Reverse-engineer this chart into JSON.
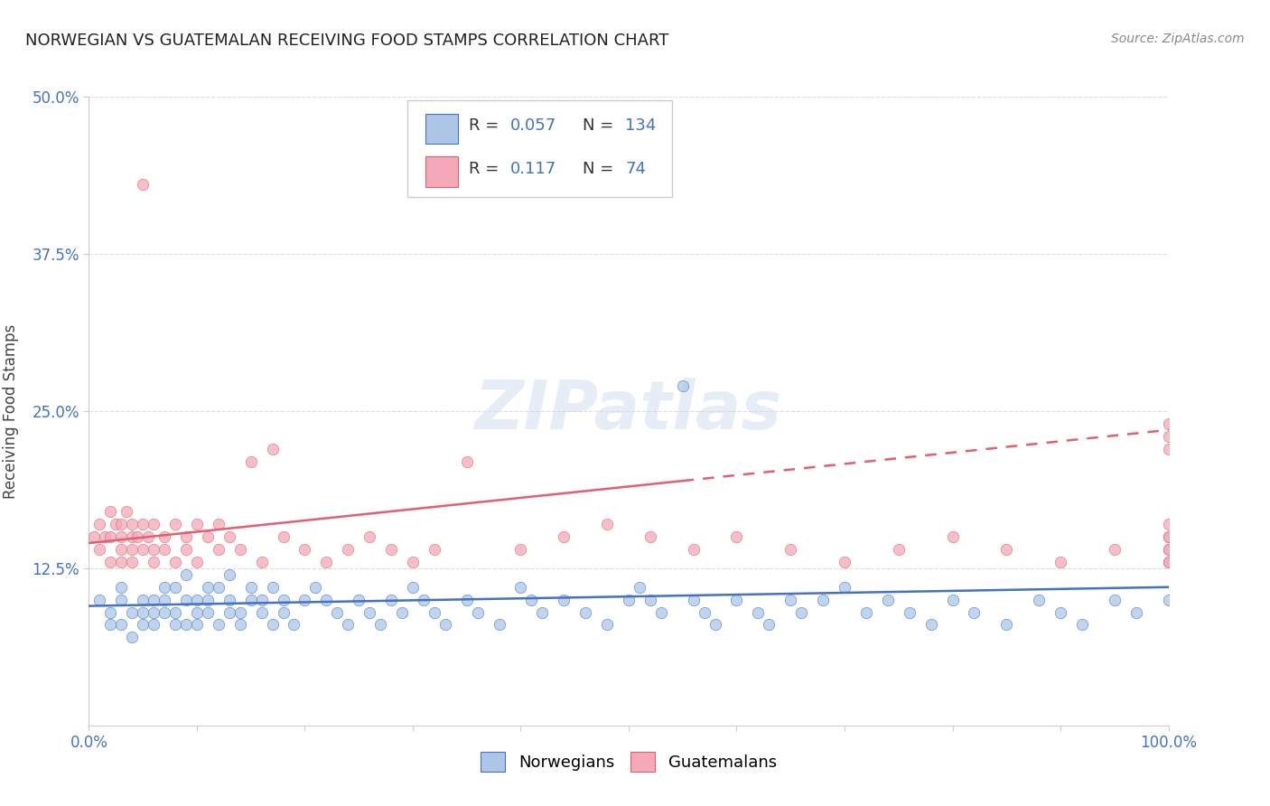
{
  "title": "NORWEGIAN VS GUATEMALAN RECEIVING FOOD STAMPS CORRELATION CHART",
  "source": "Source: ZipAtlas.com",
  "ylabel": "Receiving Food Stamps",
  "xlim": [
    0,
    100
  ],
  "ylim": [
    0,
    50
  ],
  "y_tick_values": [
    12.5,
    25.0,
    37.5,
    50.0
  ],
  "background_color": "#ffffff",
  "grid_color": "#dddddd",
  "norwegian_color": "#adc6e8",
  "guatemalan_color": "#f4a8b8",
  "norwegian_line_color": "#4472c4",
  "guatemalan_line_color": "#e06070",
  "title_color": "#222222",
  "source_color": "#888888",
  "watermark": "ZIPatlas",
  "norwegian_scatter_x": [
    1,
    2,
    2,
    3,
    3,
    3,
    4,
    4,
    5,
    5,
    5,
    6,
    6,
    6,
    7,
    7,
    7,
    8,
    8,
    8,
    9,
    9,
    9,
    10,
    10,
    10,
    11,
    11,
    11,
    12,
    12,
    13,
    13,
    13,
    14,
    14,
    15,
    15,
    16,
    16,
    17,
    17,
    18,
    18,
    19,
    20,
    21,
    22,
    23,
    24,
    25,
    26,
    27,
    28,
    29,
    30,
    31,
    32,
    33,
    35,
    36,
    38,
    40,
    41,
    42,
    44,
    46,
    48,
    50,
    51,
    52,
    53,
    55,
    56,
    57,
    58,
    60,
    62,
    63,
    65,
    66,
    68,
    70,
    72,
    74,
    76,
    78,
    80,
    82,
    85,
    88,
    90,
    92,
    95,
    97,
    100
  ],
  "norwegian_scatter_y": [
    10,
    8,
    9,
    8,
    10,
    11,
    7,
    9,
    8,
    9,
    10,
    9,
    8,
    10,
    9,
    10,
    11,
    8,
    9,
    11,
    8,
    10,
    12,
    9,
    10,
    8,
    11,
    9,
    10,
    8,
    11,
    10,
    9,
    12,
    9,
    8,
    10,
    11,
    9,
    10,
    8,
    11,
    10,
    9,
    8,
    10,
    11,
    10,
    9,
    8,
    10,
    9,
    8,
    10,
    9,
    11,
    10,
    9,
    8,
    10,
    9,
    8,
    11,
    10,
    9,
    10,
    9,
    8,
    10,
    11,
    10,
    9,
    27,
    10,
    9,
    8,
    10,
    9,
    8,
    10,
    9,
    10,
    11,
    9,
    10,
    9,
    8,
    10,
    9,
    8,
    10,
    9,
    8,
    10,
    9,
    10
  ],
  "guatemalan_scatter_x": [
    0.5,
    1,
    1,
    1.5,
    2,
    2,
    2,
    2.5,
    3,
    3,
    3,
    3,
    3.5,
    4,
    4,
    4,
    4,
    4.5,
    5,
    5,
    5,
    5.5,
    6,
    6,
    6,
    7,
    7,
    8,
    8,
    9,
    9,
    10,
    10,
    11,
    12,
    12,
    13,
    14,
    15,
    16,
    17,
    18,
    20,
    22,
    24,
    26,
    28,
    30,
    32,
    35,
    40,
    44,
    48,
    52,
    56,
    60,
    65,
    70,
    75,
    80,
    85,
    90,
    95,
    100,
    100,
    100,
    100,
    100,
    100,
    100,
    100,
    100,
    100
  ],
  "guatemalan_scatter_y": [
    15,
    14,
    16,
    15,
    13,
    17,
    15,
    16,
    14,
    13,
    16,
    15,
    17,
    14,
    15,
    13,
    16,
    15,
    14,
    43,
    16,
    15,
    14,
    13,
    16,
    15,
    14,
    13,
    16,
    14,
    15,
    13,
    16,
    15,
    14,
    16,
    15,
    14,
    21,
    13,
    22,
    15,
    14,
    13,
    14,
    15,
    14,
    13,
    14,
    21,
    14,
    15,
    16,
    15,
    14,
    15,
    14,
    13,
    14,
    15,
    14,
    13,
    14,
    22,
    24,
    14,
    13,
    15,
    14,
    23,
    13,
    15,
    16
  ],
  "norwegian_line_x": [
    0,
    100
  ],
  "norwegian_line_y": [
    9.5,
    11.0
  ],
  "guatemalan_line_x": [
    0,
    100
  ],
  "guatemalan_line_y": [
    14.5,
    23.5
  ],
  "guatemalan_line_dashed_start": 55,
  "legend_R1": "0.057",
  "legend_N1": "134",
  "legend_R2": "0.117",
  "legend_N2": "74"
}
